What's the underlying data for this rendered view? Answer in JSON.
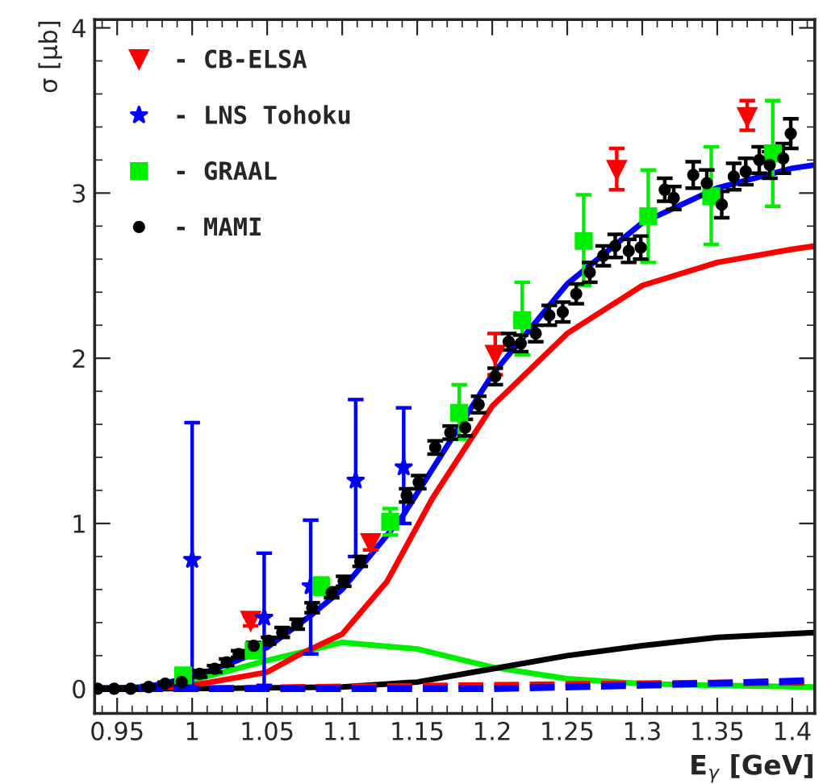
{
  "chart_data": {
    "type": "scatter",
    "xlabel": "E$_{γ}$ [GeV]",
    "ylabel": "σ [μb]",
    "xlim": [
      0.935,
      1.415
    ],
    "ylim": [
      -0.15,
      4.05
    ],
    "xticks": [
      0.95,
      1,
      1.05,
      1.1,
      1.15,
      1.2,
      1.25,
      1.3,
      1.35,
      1.4
    ],
    "yticks": [
      0,
      1,
      2,
      3,
      4
    ],
    "grid": false,
    "legend": "top left",
    "series": [
      {
        "type": "line",
        "color": "#ff0000",
        "line_style": "dashed",
        "x": [
          0.94,
          1.0,
          1.1,
          1.2,
          1.3,
          1.415
        ],
        "values": [
          0,
          0.0,
          0.01,
          0.02,
          0.03,
          0.04
        ]
      },
      {
        "type": "line",
        "color": "#0000ff",
        "line_style": "dashed",
        "x": [
          0.94,
          1.0,
          1.1,
          1.2,
          1.3,
          1.415
        ],
        "values": [
          0,
          0.0,
          0.0,
          0.0,
          0.02,
          0.05
        ]
      },
      {
        "type": "line",
        "color": "#00ee00",
        "line_style": "solid",
        "x": [
          0.94,
          0.97,
          1.0,
          1.05,
          1.1,
          1.15,
          1.2,
          1.25,
          1.3,
          1.35,
          1.415
        ],
        "values": [
          0,
          0.01,
          0.05,
          0.17,
          0.28,
          0.24,
          0.13,
          0.06,
          0.03,
          0.02,
          0.01
        ]
      },
      {
        "type": "line",
        "color": "#000000",
        "line_style": "solid",
        "x": [
          0.94,
          1.0,
          1.1,
          1.15,
          1.2,
          1.25,
          1.3,
          1.35,
          1.415
        ],
        "values": [
          0,
          0.0,
          0.01,
          0.04,
          0.12,
          0.2,
          0.26,
          0.31,
          0.34
        ]
      },
      {
        "type": "line",
        "color": "#ff0000",
        "line_style": "solid",
        "x": [
          0.94,
          0.97,
          1.0,
          1.05,
          1.07,
          1.1,
          1.13,
          1.16,
          1.2,
          1.25,
          1.3,
          1.35,
          1.4,
          1.415
        ],
        "values": [
          0,
          0.0,
          0.02,
          0.1,
          0.2,
          0.33,
          0.65,
          1.15,
          1.71,
          2.15,
          2.44,
          2.58,
          2.66,
          2.68
        ]
      },
      {
        "type": "line",
        "color": "#0000ff",
        "line_style": "solid",
        "x": [
          0.94,
          0.97,
          1.0,
          1.03,
          1.05,
          1.08,
          1.1,
          1.14,
          1.2,
          1.25,
          1.3,
          1.35,
          1.4,
          1.415
        ],
        "values": [
          0,
          0.01,
          0.07,
          0.17,
          0.25,
          0.45,
          0.6,
          1.04,
          1.9,
          2.45,
          2.82,
          3.03,
          3.15,
          3.17
        ]
      },
      {
        "name": "- CB-ELSA",
        "color": "#ff0000",
        "marker": "triangle",
        "x": [
          1.039,
          1.119,
          1.202,
          1.283,
          1.37
        ],
        "values": [
          0.41,
          0.88,
          2.02,
          3.14,
          3.46
        ],
        "errors": [
          0.03,
          0.04,
          [
            1.9,
            2.15
          ],
          [
            3.02,
            3.27
          ],
          [
            3.38,
            3.56
          ]
        ]
      },
      {
        "name": "- LNS Tohoku",
        "color": "#0000ff",
        "marker": "star",
        "x": [
          1.0,
          1.048,
          1.079,
          1.109,
          1.141
        ],
        "values": [
          0.78,
          0.43,
          0.62,
          1.26,
          1.34
        ],
        "errors": [
          [
            0.0,
            1.61
          ],
          [
            0.02,
            0.82
          ],
          [
            0.21,
            1.02
          ],
          [
            0.8,
            1.75
          ],
          [
            1.0,
            1.7
          ]
        ]
      },
      {
        "name": "- GRAAL",
        "color": "#00ee00",
        "marker": "square",
        "x": [
          0.994,
          1.041,
          1.086,
          1.132,
          1.178,
          1.22,
          1.261,
          1.304,
          1.346,
          1.387
        ],
        "values": [
          0.08,
          0.23,
          0.62,
          1.01,
          1.67,
          2.23,
          2.71,
          2.86,
          2.98,
          3.24
        ],
        "errors": [
          0.03,
          0.04,
          0.05,
          0.08,
          [
            1.51,
            1.84
          ],
          [
            2.02,
            2.46
          ],
          [
            2.44,
            2.99
          ],
          [
            2.58,
            3.14
          ],
          [
            2.69,
            3.28
          ],
          [
            2.92,
            3.56
          ]
        ]
      },
      {
        "name": "- MAMI",
        "color": "#000000",
        "marker": "circle",
        "x": [
          0.937,
          0.948,
          0.959,
          0.971,
          0.982,
          0.993,
          1.005,
          1.015,
          1.023,
          1.031,
          1.041,
          1.051,
          1.06,
          1.07,
          1.08,
          1.093,
          1.101,
          1.112,
          1.143,
          1.151,
          1.162,
          1.172,
          1.182,
          1.191,
          1.202,
          1.211,
          1.219,
          1.229,
          1.238,
          1.247,
          1.256,
          1.265,
          1.274,
          1.282,
          1.291,
          1.299,
          1.315,
          1.321,
          1.334,
          1.343,
          1.353,
          1.361,
          1.369,
          1.378,
          1.385,
          1.394,
          1.399
        ],
        "values": [
          0.0,
          0.0,
          0.0,
          0.01,
          0.03,
          0.04,
          0.09,
          0.12,
          0.16,
          0.21,
          0.26,
          0.29,
          0.34,
          0.39,
          0.49,
          0.58,
          0.65,
          0.77,
          1.17,
          1.25,
          1.46,
          1.55,
          1.58,
          1.72,
          1.89,
          2.1,
          2.09,
          2.15,
          2.26,
          2.28,
          2.39,
          2.52,
          2.62,
          2.68,
          2.65,
          2.67,
          3.02,
          2.97,
          3.11,
          3.06,
          2.93,
          3.1,
          3.13,
          3.2,
          3.17,
          3.21,
          3.36
        ],
        "errors": [
          0.01,
          0.01,
          0.01,
          0.01,
          0.01,
          0.01,
          0.02,
          0.02,
          0.02,
          0.02,
          0.02,
          0.02,
          0.03,
          0.03,
          0.03,
          0.03,
          0.03,
          0.03,
          0.04,
          0.04,
          0.04,
          0.04,
          0.05,
          0.05,
          0.05,
          0.05,
          0.05,
          0.05,
          0.06,
          0.06,
          0.06,
          0.06,
          0.06,
          0.07,
          0.07,
          0.07,
          0.07,
          0.07,
          0.08,
          0.08,
          0.08,
          0.08,
          0.08,
          0.08,
          0.08,
          0.09,
          0.09
        ]
      }
    ]
  }
}
